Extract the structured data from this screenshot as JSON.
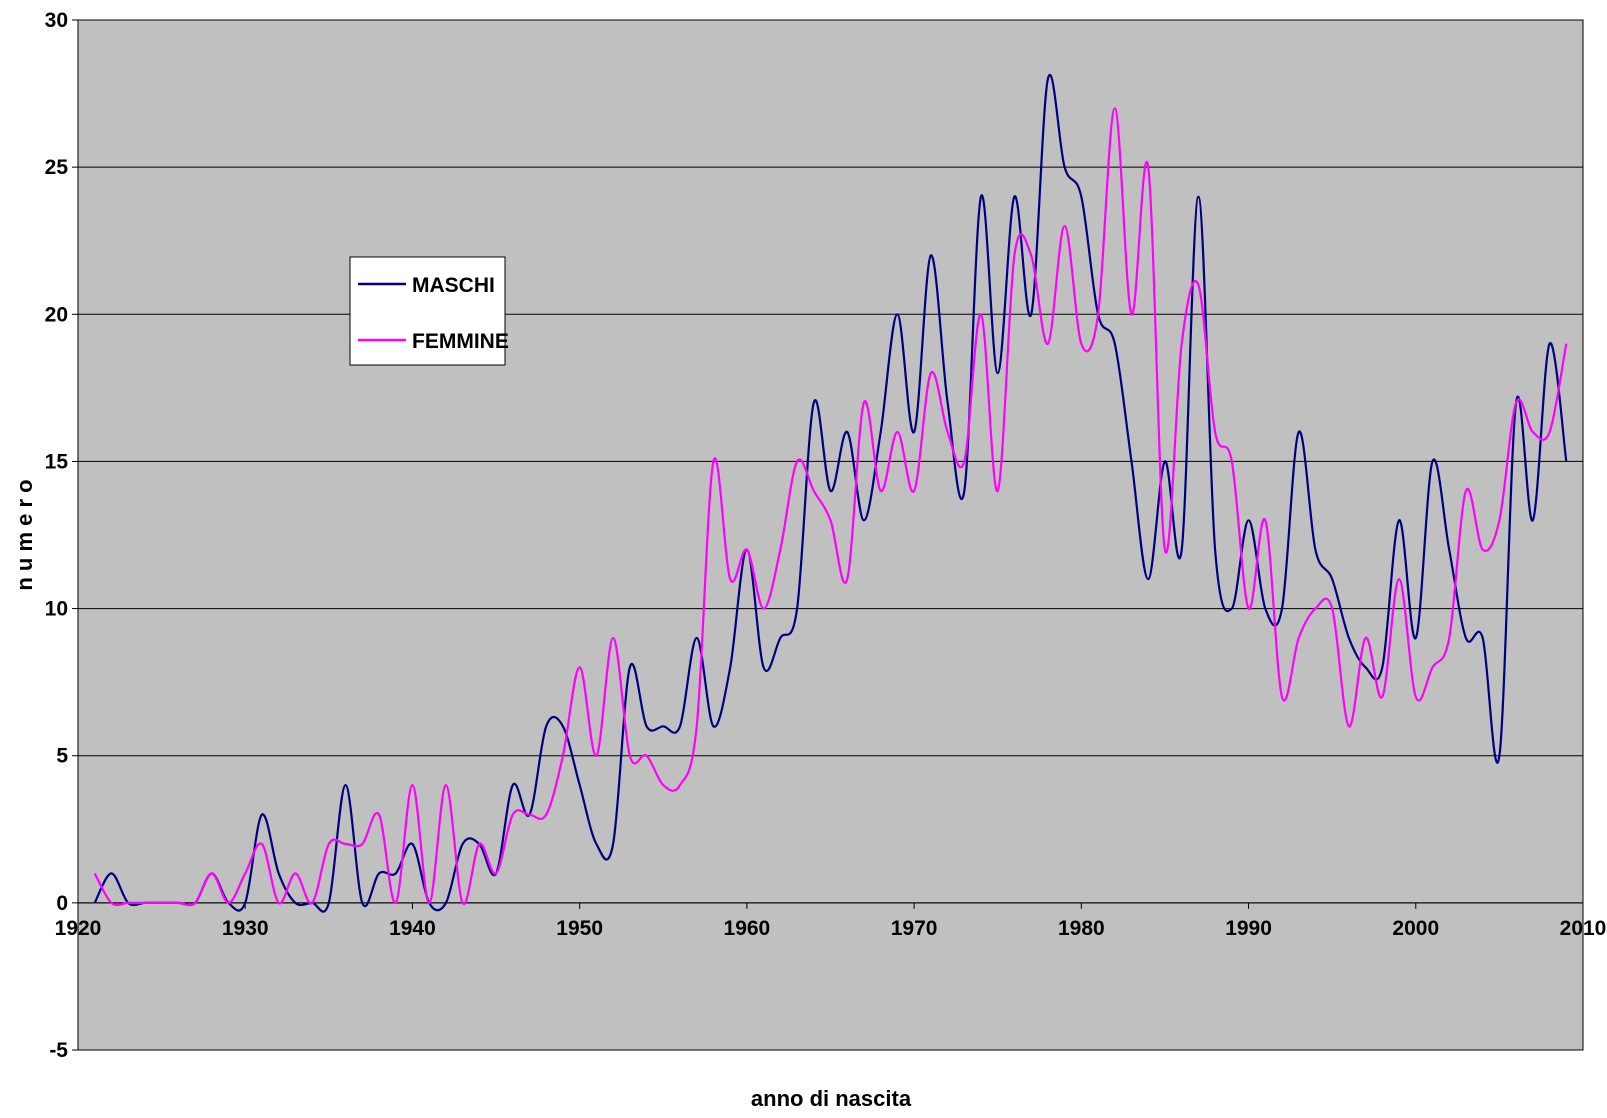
{
  "chart_data": {
    "type": "line",
    "title": "",
    "xlabel": "anno di nascita",
    "ylabel": "n u m e r o",
    "xlim": [
      1920,
      2010
    ],
    "ylim": [
      -5,
      30
    ],
    "x_ticks": [
      1920,
      1930,
      1940,
      1950,
      1960,
      1970,
      1980,
      1990,
      2000,
      2010
    ],
    "y_ticks": [
      -5,
      0,
      5,
      10,
      15,
      20,
      25,
      30
    ],
    "grid": "horizontal",
    "legend_position": "upper-left",
    "plot_background": "#C0C0C0",
    "series": [
      {
        "name": "MASCHI",
        "color": "#000080",
        "x": [
          1921,
          1922,
          1923,
          1924,
          1925,
          1926,
          1927,
          1928,
          1929,
          1930,
          1931,
          1932,
          1933,
          1934,
          1935,
          1936,
          1937,
          1938,
          1939,
          1940,
          1941,
          1942,
          1943,
          1944,
          1945,
          1946,
          1947,
          1948,
          1949,
          1950,
          1951,
          1952,
          1953,
          1954,
          1955,
          1956,
          1957,
          1958,
          1959,
          1960,
          1961,
          1962,
          1963,
          1964,
          1965,
          1966,
          1967,
          1968,
          1969,
          1970,
          1971,
          1972,
          1973,
          1974,
          1975,
          1976,
          1977,
          1978,
          1979,
          1980,
          1981,
          1982,
          1983,
          1984,
          1985,
          1986,
          1987,
          1988,
          1989,
          1990,
          1991,
          1992,
          1993,
          1994,
          1995,
          1996,
          1997,
          1998,
          1999,
          2000,
          2001,
          2002,
          2003,
          2004,
          2005,
          2006,
          2007,
          2008,
          2009
        ],
        "values": [
          0,
          1,
          0,
          0,
          0,
          0,
          0,
          1,
          0,
          0,
          3,
          1,
          0,
          0,
          0,
          4,
          0,
          1,
          1,
          2,
          0,
          0,
          2,
          2,
          1,
          4,
          3,
          6,
          6,
          4,
          2,
          2,
          8,
          6,
          6,
          6,
          9,
          6,
          8,
          12,
          8,
          9,
          10,
          17,
          14,
          16,
          13,
          16,
          20,
          16,
          22,
          17,
          14,
          24,
          18,
          24,
          20,
          28,
          25,
          24,
          20,
          19,
          15,
          11,
          15,
          12,
          24,
          12,
          10,
          13,
          10,
          10,
          16,
          12,
          11,
          9,
          8,
          8,
          13,
          9,
          15,
          12,
          9,
          9,
          5,
          17,
          13,
          19,
          15
        ]
      },
      {
        "name": "FEMMINE",
        "color": "#FF00FF",
        "x": [
          1921,
          1922,
          1923,
          1924,
          1925,
          1926,
          1927,
          1928,
          1929,
          1930,
          1931,
          1932,
          1933,
          1934,
          1935,
          1936,
          1937,
          1938,
          1939,
          1940,
          1941,
          1942,
          1943,
          1944,
          1945,
          1946,
          1947,
          1948,
          1949,
          1950,
          1951,
          1952,
          1953,
          1954,
          1955,
          1956,
          1957,
          1958,
          1959,
          1960,
          1961,
          1962,
          1963,
          1964,
          1965,
          1966,
          1967,
          1968,
          1969,
          1970,
          1971,
          1972,
          1973,
          1974,
          1975,
          1976,
          1977,
          1978,
          1979,
          1980,
          1981,
          1982,
          1983,
          1984,
          1985,
          1986,
          1987,
          1988,
          1989,
          1990,
          1991,
          1992,
          1993,
          1994,
          1995,
          1996,
          1997,
          1998,
          1999,
          2000,
          2001,
          2002,
          2003,
          2004,
          2005,
          2006,
          2007,
          2008,
          2009
        ],
        "values": [
          1,
          0,
          0,
          0,
          0,
          0,
          0,
          1,
          0,
          1,
          2,
          0,
          1,
          0,
          2,
          2,
          2,
          3,
          0,
          4,
          0,
          4,
          0,
          2,
          1,
          3,
          3,
          3,
          5,
          8,
          5,
          9,
          5,
          5,
          4,
          4,
          6,
          15,
          11,
          12,
          10,
          12,
          15,
          14,
          13,
          11,
          17,
          14,
          16,
          14,
          18,
          16,
          15,
          20,
          14,
          22,
          22,
          19,
          23,
          19,
          20,
          27,
          20,
          25,
          12,
          19,
          21,
          16,
          15,
          10,
          13,
          7,
          9,
          10,
          10,
          6,
          9,
          7,
          11,
          7,
          8,
          9,
          14,
          12,
          13,
          17,
          16,
          16,
          19
        ]
      }
    ]
  }
}
